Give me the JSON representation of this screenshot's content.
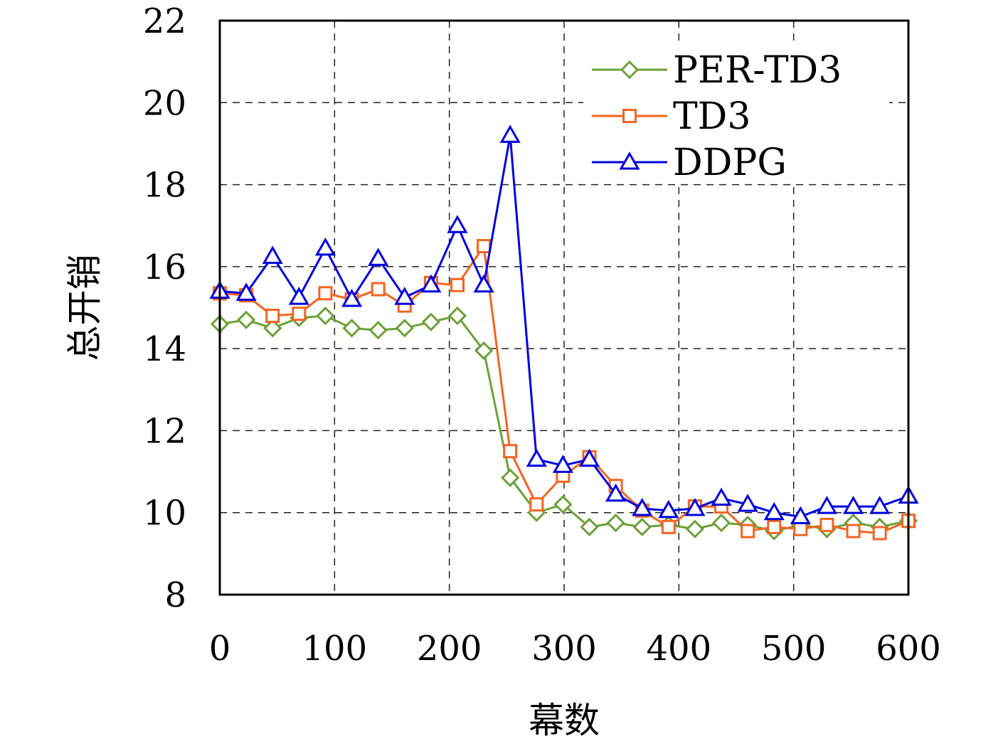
{
  "chart_data": {
    "type": "line",
    "title": "",
    "xlabel": "幕数",
    "ylabel": "总开销",
    "xlim": [
      0,
      600
    ],
    "ylim": [
      8,
      22
    ],
    "xticks": [
      0,
      100,
      200,
      300,
      400,
      500,
      600
    ],
    "yticks": [
      8,
      10,
      12,
      14,
      16,
      18,
      20,
      22
    ],
    "xtick_labels": [
      "0",
      "100",
      "200",
      "300",
      "400",
      "500",
      "600"
    ],
    "ytick_labels": [
      "8",
      "10",
      "12",
      "14",
      "16",
      "18",
      "20",
      "22"
    ],
    "grid": true,
    "legend_position": "top-right",
    "x": [
      0,
      23,
      46,
      69,
      92,
      115,
      138,
      161,
      184,
      207,
      230,
      253,
      276,
      299,
      322,
      345,
      368,
      391,
      414,
      437,
      460,
      483,
      506,
      529,
      552,
      575,
      600
    ],
    "series": [
      {
        "name": "PER-TD3",
        "color": "#6ea03a",
        "marker": "diamond",
        "values": [
          14.6,
          14.7,
          14.5,
          14.75,
          14.8,
          14.5,
          14.45,
          14.5,
          14.65,
          14.8,
          13.95,
          10.85,
          10.0,
          10.2,
          9.65,
          9.75,
          9.65,
          9.7,
          9.6,
          9.75,
          9.7,
          9.55,
          9.7,
          9.6,
          9.75,
          9.65,
          9.8
        ]
      },
      {
        "name": "TD3",
        "color": "#f26522",
        "marker": "square",
        "values": [
          15.35,
          15.3,
          14.8,
          14.85,
          15.35,
          15.2,
          15.45,
          15.05,
          15.6,
          15.55,
          16.5,
          11.5,
          10.2,
          10.9,
          11.35,
          10.65,
          10.05,
          9.65,
          10.15,
          10.15,
          9.55,
          9.65,
          9.6,
          9.7,
          9.55,
          9.5,
          9.8
        ]
      },
      {
        "name": "DDPG",
        "color": "#0000dd",
        "marker": "triangle",
        "values": [
          15.4,
          15.35,
          16.25,
          15.25,
          16.45,
          15.2,
          16.2,
          15.25,
          15.55,
          17.0,
          15.55,
          19.2,
          11.3,
          11.15,
          11.3,
          10.45,
          10.1,
          10.05,
          10.1,
          10.35,
          10.2,
          10.0,
          9.9,
          10.15,
          10.15,
          10.15,
          10.4
        ]
      }
    ]
  }
}
